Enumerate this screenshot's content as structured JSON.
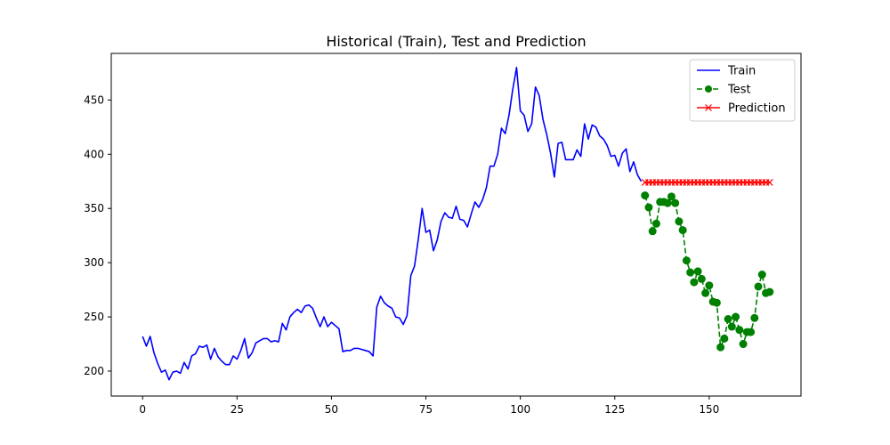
{
  "chart_data": {
    "type": "line",
    "title": "Historical (Train), Test and Prediction",
    "xlabel": "",
    "ylabel": "",
    "xlim": [
      -8.3,
      174.3
    ],
    "ylim": [
      177,
      493
    ],
    "xticks": [
      0,
      25,
      50,
      75,
      100,
      125,
      150
    ],
    "yticks": [
      200,
      250,
      300,
      350,
      400,
      450
    ],
    "grid": false,
    "legend_position": "top-right",
    "series": [
      {
        "name": "Train",
        "color": "#0000ff",
        "style": "solid",
        "marker": "none",
        "x_start": 0,
        "values": [
          232,
          223,
          232,
          217,
          207,
          199,
          201,
          192,
          199,
          200,
          198,
          208,
          202,
          214,
          216,
          223,
          222,
          224,
          211,
          221,
          213,
          209,
          206,
          206,
          214,
          211,
          219,
          230,
          212,
          217,
          226,
          228,
          230,
          230,
          227,
          228,
          227,
          244,
          238,
          250,
          254,
          257,
          254,
          260,
          261,
          258,
          249,
          241,
          250,
          241,
          245,
          242,
          239,
          218,
          219,
          219,
          221,
          221,
          220,
          219,
          218,
          214,
          259,
          269,
          263,
          260,
          258,
          250,
          249,
          243,
          251,
          288,
          297,
          322,
          350,
          328,
          330,
          311,
          321,
          338,
          346,
          342,
          341,
          352,
          340,
          339,
          333,
          345,
          356,
          351,
          358,
          369,
          389,
          389,
          400,
          424,
          419,
          436,
          460,
          480,
          440,
          436,
          421,
          428,
          462,
          454,
          432,
          418,
          401,
          379,
          410,
          411,
          395,
          395,
          395,
          404,
          398,
          428,
          414,
          427,
          425,
          417,
          414,
          408,
          398,
          399,
          389,
          401,
          405,
          384,
          393,
          381,
          375
        ]
      },
      {
        "name": "Test",
        "color": "#008000",
        "style": "dashed",
        "marker": "circle",
        "x_start": 133,
        "values": [
          362,
          351,
          329,
          336,
          356,
          356,
          355,
          361,
          355,
          338,
          330,
          302,
          291,
          282,
          292,
          285,
          272,
          279,
          264,
          263,
          222,
          230,
          248,
          241,
          250,
          238,
          225,
          236,
          236,
          249,
          278,
          289,
          272,
          273
        ]
      },
      {
        "name": "Prediction",
        "color": "#ff0000",
        "style": "solid",
        "marker": "x",
        "x_start": 133,
        "values": [
          374,
          374,
          374,
          374,
          374,
          374,
          374,
          374,
          374,
          374,
          374,
          374,
          374,
          374,
          374,
          374,
          374,
          374,
          374,
          374,
          374,
          374,
          374,
          374,
          374,
          374,
          374,
          374,
          374,
          374,
          374,
          374,
          374,
          374
        ]
      }
    ]
  }
}
